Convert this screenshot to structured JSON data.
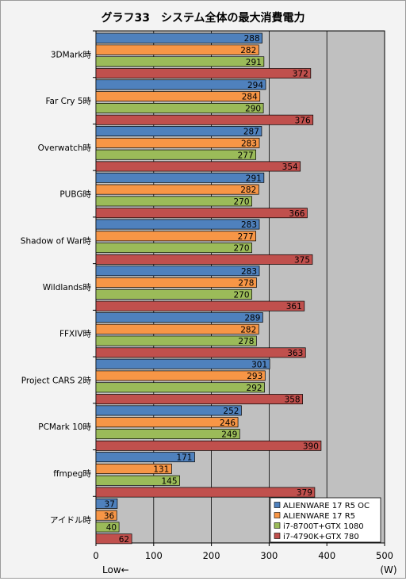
{
  "chart_data": {
    "type": "bar",
    "orientation": "horizontal",
    "title": "グラフ33　システム全体の最大消費電力",
    "xlabel": "",
    "unit_label": "(W)",
    "axis_note": "Low←",
    "xlim": [
      0,
      500
    ],
    "ticks": [
      0,
      100,
      200,
      300,
      400,
      500
    ],
    "grid": true,
    "legend_position": "bottom-right",
    "categories": [
      "3DMark時",
      "Far Cry 5時",
      "Overwatch時",
      "PUBG時",
      "Shadow of War時",
      "Wildlands時",
      "FFXIV時",
      "Project CARS 2時",
      "PCMark 10時",
      "ffmpeg時",
      "アイドル時"
    ],
    "series": [
      {
        "name": "ALIENWARE 17 R5 OC",
        "color": "#4f81bd",
        "values": [
          288,
          294,
          287,
          291,
          283,
          283,
          289,
          301,
          252,
          171,
          37
        ]
      },
      {
        "name": "ALIENWARE 17 R5",
        "color": "#f79646",
        "values": [
          282,
          284,
          283,
          282,
          277,
          278,
          282,
          293,
          246,
          131,
          36
        ]
      },
      {
        "name": "i7-8700T+GTX 1080",
        "color": "#9bbb59",
        "values": [
          291,
          290,
          277,
          270,
          270,
          270,
          278,
          292,
          249,
          145,
          40
        ]
      },
      {
        "name": "i7-4790K+GTX 780",
        "color": "#c0504d",
        "values": [
          372,
          376,
          354,
          366,
          375,
          361,
          363,
          358,
          390,
          379,
          62
        ]
      }
    ]
  }
}
